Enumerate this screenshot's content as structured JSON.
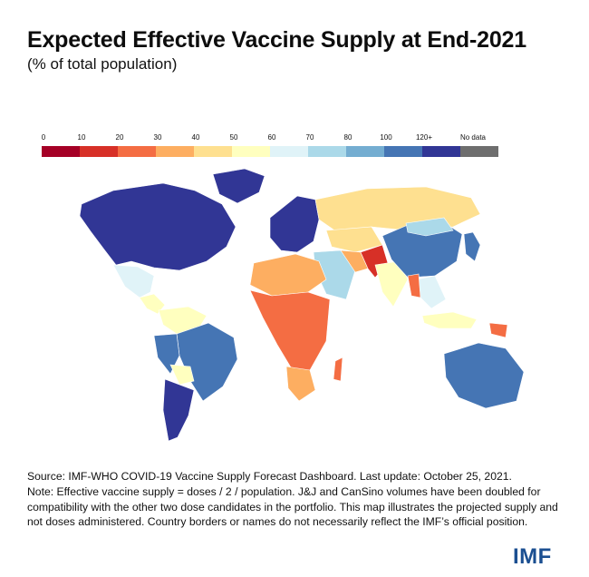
{
  "header": {
    "title": "Expected Effective Vaccine Supply at End-2021",
    "subtitle": "(% of total population)"
  },
  "legend": {
    "items": [
      {
        "label": "0",
        "color": "#a50026"
      },
      {
        "label": "10",
        "color": "#d73027"
      },
      {
        "label": "20",
        "color": "#f46d43"
      },
      {
        "label": "30",
        "color": "#fdae61"
      },
      {
        "label": "40",
        "color": "#fee090"
      },
      {
        "label": "50",
        "color": "#ffffbf"
      },
      {
        "label": "60",
        "color": "#e0f3f8"
      },
      {
        "label": "70",
        "color": "#abd9e9"
      },
      {
        "label": "80",
        "color": "#74add1"
      },
      {
        "label": "100",
        "color": "#4575b4"
      },
      {
        "label": "120+",
        "color": "#313695"
      },
      {
        "label": "No data",
        "color": "#6e6e6e"
      }
    ]
  },
  "map": {
    "regions": [
      {
        "name": "North America",
        "color": "#313695"
      },
      {
        "name": "Greenland",
        "color": "#313695"
      },
      {
        "name": "Mexico",
        "color": "#e0f3f8"
      },
      {
        "name": "Central America",
        "color": "#ffffbf"
      },
      {
        "name": "Colombia / Venezuela",
        "color": "#ffffbf"
      },
      {
        "name": "Brazil",
        "color": "#4575b4"
      },
      {
        "name": "Peru",
        "color": "#4575b4"
      },
      {
        "name": "Bolivia",
        "color": "#ffffbf"
      },
      {
        "name": "Southern Cone",
        "color": "#313695"
      },
      {
        "name": "Europe",
        "color": "#313695"
      },
      {
        "name": "Russia",
        "color": "#fee090"
      },
      {
        "name": "Kazakhstan / Central Asia",
        "color": "#fee090"
      },
      {
        "name": "Middle East",
        "color": "#abd9e9"
      },
      {
        "name": "Iran",
        "color": "#fdae61"
      },
      {
        "name": "Afghanistan / Pakistan",
        "color": "#d73027"
      },
      {
        "name": "India",
        "color": "#ffffbf"
      },
      {
        "name": "China",
        "color": "#4575b4"
      },
      {
        "name": "Mongolia",
        "color": "#abd9e9"
      },
      {
        "name": "Japan / Korea",
        "color": "#4575b4"
      },
      {
        "name": "Southeast Asia",
        "color": "#e0f3f8"
      },
      {
        "name": "Myanmar",
        "color": "#f46d43"
      },
      {
        "name": "Indonesia",
        "color": "#ffffbf"
      },
      {
        "name": "Papua New Guinea",
        "color": "#f46d43"
      },
      {
        "name": "Australia",
        "color": "#4575b4"
      },
      {
        "name": "North Africa",
        "color": "#fdae61"
      },
      {
        "name": "Sub-Saharan Africa",
        "color": "#f46d43"
      },
      {
        "name": "Southern Africa",
        "color": "#fdae61"
      },
      {
        "name": "Madagascar",
        "color": "#f46d43"
      }
    ]
  },
  "footer": {
    "source": "Source: IMF-WHO COVID-19 Vaccine Supply Forecast Dashboard. Last update: October 25, 2021.",
    "note": "Note: Effective vaccine supply = doses / 2 / population. J&J and CanSino volumes have been doubled for compatibility with the other two dose candidates in the portfolio. This map illustrates the projected supply and not doses administered. Country borders or names do not necessarily reflect the IMF’s official position.",
    "logo": "IMF"
  }
}
